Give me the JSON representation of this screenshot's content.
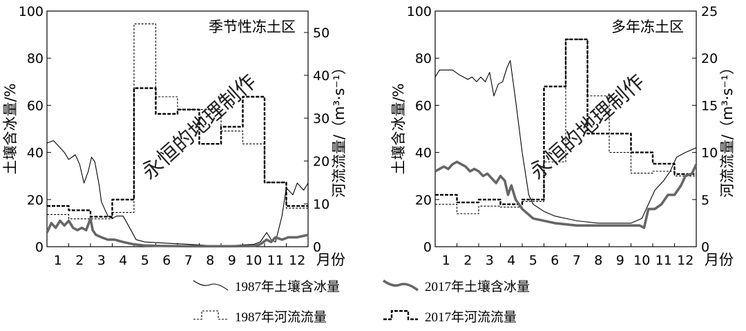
{
  "watermark": "永恒的地理制作",
  "legend": {
    "items": [
      {
        "label": "1987年土壤含冰量",
        "style": "thin-solid"
      },
      {
        "label": "2017年土壤含冰量",
        "style": "thick-solid"
      },
      {
        "label": "1987年河流流量",
        "style": "thin-dashed"
      },
      {
        "label": "2017年河流流量",
        "style": "thick-dashed"
      }
    ]
  },
  "chart_data": [
    {
      "type": "line",
      "title": "季节性冻土区",
      "ylabel": "土壤含冰量/%",
      "y2label": "河流流量/（m³·s⁻¹）",
      "xlabel": "月份",
      "categories": [
        "1",
        "2",
        "3",
        "4",
        "5",
        "6",
        "7",
        "8",
        "9",
        "10",
        "11",
        "12"
      ],
      "ylim": [
        0,
        100
      ],
      "y2lim": [
        0,
        55
      ],
      "yticks": [
        0,
        20,
        40,
        60,
        80,
        100
      ],
      "y2ticks": [
        0,
        10,
        20,
        30,
        40,
        50
      ],
      "series": [
        {
          "name": "1987年土壤含冰量",
          "axis": "left",
          "x": [
            0.5,
            0.8,
            1.0,
            1.3,
            1.5,
            1.8,
            2.0,
            2.2,
            2.4,
            2.55,
            2.7,
            2.9,
            3.0,
            3.3,
            3.5,
            3.7,
            4.0,
            4.3,
            4.6,
            5.0,
            6.0,
            7.0,
            8.0,
            9.0,
            10.0,
            10.3,
            10.6,
            10.8,
            11.0,
            11.3,
            11.5,
            11.8,
            12.0,
            12.3,
            12.5
          ],
          "values": [
            44,
            45,
            43,
            40,
            37,
            39,
            35,
            27,
            32,
            38,
            36,
            26,
            19,
            13,
            12,
            13,
            13,
            8,
            3,
            2,
            1.5,
            1,
            0.5,
            0.5,
            1,
            2,
            6,
            3,
            2,
            13,
            25,
            22,
            27,
            24,
            27
          ]
        },
        {
          "name": "2017年土壤含冰量",
          "axis": "left",
          "x": [
            0.5,
            0.7,
            0.9,
            1.1,
            1.3,
            1.5,
            1.7,
            1.9,
            2.1,
            2.3,
            2.5,
            2.6,
            2.75,
            3.0,
            3.3,
            3.6,
            4.0,
            4.5,
            5.0,
            6.0,
            7.0,
            8.0,
            9.0,
            10.0,
            10.3,
            10.6,
            10.8,
            11.0,
            11.3,
            11.6,
            12.0,
            12.5
          ],
          "values": [
            6,
            10,
            8,
            11,
            9,
            11,
            8,
            7,
            8,
            7,
            12,
            7,
            5,
            4,
            3,
            3,
            2,
            1,
            0.5,
            0.3,
            0.2,
            0.2,
            0.2,
            0.3,
            1,
            3,
            2,
            4,
            3,
            4,
            4,
            5
          ]
        },
        {
          "name": "1987年河流流量",
          "axis": "right",
          "step": true,
          "values": [
            7.5,
            6.5,
            6.5,
            8,
            52,
            35,
            32,
            32,
            27,
            24,
            15,
            9
          ]
        },
        {
          "name": "2017年河流流量",
          "axis": "right",
          "step": true,
          "values": [
            9.5,
            8.5,
            7,
            11,
            37,
            31,
            32,
            24,
            28,
            35,
            15,
            9.5
          ]
        }
      ]
    },
    {
      "type": "line",
      "title": "多年冻土区",
      "ylabel": "土壤含冰量/%",
      "y2label": "河流流量/（m³·s⁻¹）",
      "xlabel": "月份",
      "categories": [
        "1",
        "2",
        "3",
        "4",
        "5",
        "6",
        "7",
        "8",
        "9",
        "10",
        "11",
        "12"
      ],
      "ylim": [
        0,
        100
      ],
      "y2lim": [
        0,
        25
      ],
      "yticks": [
        0,
        20,
        40,
        60,
        80,
        100
      ],
      "y2ticks": [
        0,
        5,
        10,
        15,
        20,
        25
      ],
      "series": [
        {
          "name": "1987年土壤含冰量",
          "axis": "left",
          "x": [
            0.5,
            0.7,
            1.0,
            1.3,
            1.6,
            1.8,
            2.0,
            2.2,
            2.4,
            2.6,
            2.8,
            3.0,
            3.2,
            3.4,
            3.6,
            3.8,
            3.95,
            4.2,
            4.5,
            4.8,
            5.0,
            5.5,
            6.0,
            7.0,
            8.0,
            9.0,
            9.5,
            10.0,
            10.3,
            10.6,
            11.0,
            11.3,
            11.6,
            12.0,
            12.5
          ],
          "values": [
            72,
            75,
            75,
            75,
            73,
            72,
            71,
            72,
            70,
            72,
            70,
            74,
            64,
            69,
            70,
            76,
            79,
            62,
            40,
            22,
            18,
            15,
            13,
            11,
            10,
            10,
            10,
            12,
            18,
            24,
            28,
            32,
            38,
            40,
            42
          ]
        },
        {
          "name": "2017年土壤含冰量",
          "axis": "left",
          "x": [
            0.5,
            0.7,
            0.9,
            1.1,
            1.3,
            1.5,
            1.7,
            1.9,
            2.1,
            2.3,
            2.5,
            2.7,
            2.9,
            3.1,
            3.3,
            3.5,
            3.7,
            3.85,
            4.0,
            4.2,
            4.5,
            5.0,
            6.0,
            7.0,
            8.0,
            9.0,
            9.5,
            9.9,
            10.1,
            10.3,
            10.6,
            10.9,
            11.2,
            11.5,
            11.8,
            12.0,
            12.3,
            12.5
          ],
          "values": [
            32,
            33,
            34,
            33,
            35,
            36,
            35,
            34,
            32,
            33,
            32,
            30,
            31,
            29,
            27,
            30,
            28,
            22,
            26,
            20,
            16,
            12,
            10,
            9,
            9,
            9,
            9,
            9,
            8,
            16,
            16,
            18,
            22,
            22,
            26,
            30,
            31,
            35
          ]
        },
        {
          "name": "1987年河流流量",
          "axis": "right",
          "step": true,
          "values": [
            4.5,
            3.5,
            4.3,
            4.2,
            4.8,
            9,
            22,
            16,
            10,
            7.8,
            8,
            7.5
          ]
        },
        {
          "name": "2017年河流流量",
          "axis": "right",
          "step": true,
          "values": [
            5.5,
            4.7,
            5,
            4.5,
            5,
            17,
            22,
            12,
            12,
            10,
            8.8,
            7.7
          ]
        }
      ]
    }
  ]
}
